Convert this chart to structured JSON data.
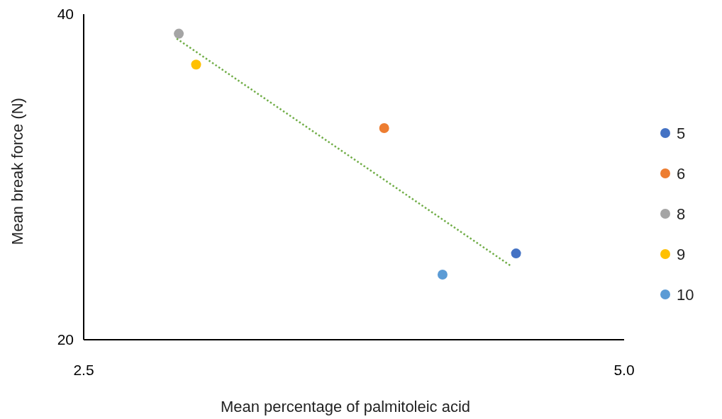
{
  "chart_data": {
    "type": "scatter",
    "xlabel": "Mean percentage of palmitoleic acid",
    "ylabel": "Mean break force (N)",
    "xlim": [
      2.5,
      5
    ],
    "xticks": [
      2.5,
      {
        "value": 5,
        "label": "5.0"
      }
    ],
    "ylim": [
      20,
      40
    ],
    "yticks": [
      20,
      40
    ],
    "grid": false,
    "legend": "right",
    "marker": "circle",
    "series": [
      {
        "name": "5",
        "color": "#4472c4",
        "x": [
          4.5
        ],
        "values": [
          25.3
        ]
      },
      {
        "name": "6",
        "color": "#ed7d31",
        "x": [
          3.89
        ],
        "values": [
          33.0
        ]
      },
      {
        "name": "8",
        "color": "#a5a5a5",
        "x": [
          2.94
        ],
        "values": [
          38.8
        ]
      },
      {
        "name": "9",
        "color": "#ffc000",
        "x": [
          3.02
        ],
        "values": [
          36.9
        ]
      },
      {
        "name": "10",
        "color": "#5b9bd5",
        "x": [
          4.16
        ],
        "values": [
          24.0
        ]
      },
      {
        "type": "line",
        "color": "#70ad47",
        "line_style": "dotted",
        "marker": "none",
        "x": [
          2.93,
          4.48
        ],
        "values": [
          38.5,
          24.5
        ]
      }
    ]
  }
}
